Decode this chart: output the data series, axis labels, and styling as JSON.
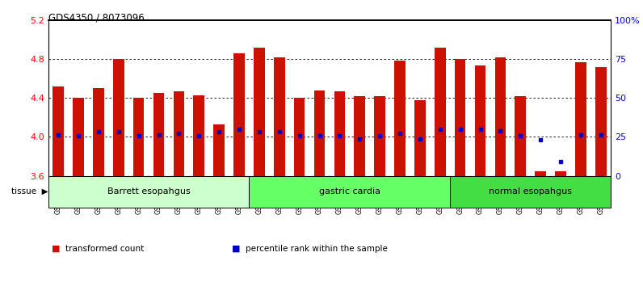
{
  "title": "GDS4350 / 8073096",
  "samples": [
    "GSM851983",
    "GSM851984",
    "GSM851985",
    "GSM851986",
    "GSM851987",
    "GSM851988",
    "GSM851989",
    "GSM851990",
    "GSM851991",
    "GSM851992",
    "GSM852001",
    "GSM852002",
    "GSM852003",
    "GSM852004",
    "GSM852005",
    "GSM852006",
    "GSM852007",
    "GSM852008",
    "GSM852009",
    "GSM852010",
    "GSM851993",
    "GSM851994",
    "GSM851995",
    "GSM851996",
    "GSM851997",
    "GSM851998",
    "GSM851999",
    "GSM852000"
  ],
  "bar_values": [
    4.52,
    4.4,
    4.5,
    4.8,
    4.4,
    4.45,
    4.47,
    4.43,
    4.13,
    4.86,
    4.92,
    4.82,
    4.4,
    4.48,
    4.47,
    4.42,
    4.42,
    4.78,
    4.38,
    4.92,
    4.8,
    4.73,
    4.82,
    4.42,
    3.65,
    3.65,
    4.77,
    4.72
  ],
  "bar_bottom": 3.6,
  "blue_dot_values": [
    4.02,
    4.01,
    4.05,
    4.05,
    4.01,
    4.02,
    4.04,
    4.01,
    4.05,
    4.08,
    4.05,
    4.05,
    4.01,
    4.01,
    4.01,
    3.98,
    4.01,
    4.04,
    3.98,
    4.08,
    4.08,
    4.08,
    4.06,
    4.01,
    3.97,
    3.75,
    4.02,
    4.02
  ],
  "ylim": [
    3.6,
    5.2
  ],
  "yticks": [
    3.6,
    4.0,
    4.4,
    4.8,
    5.2
  ],
  "right_yticks": [
    0,
    25,
    50,
    75,
    100
  ],
  "right_ytick_labels": [
    "0",
    "25",
    "50",
    "75",
    "100%"
  ],
  "groups": [
    {
      "label": "Barrett esopahgus",
      "start": 0,
      "end": 9,
      "color": "#ccffcc"
    },
    {
      "label": "gastric cardia",
      "start": 10,
      "end": 19,
      "color": "#66ff66"
    },
    {
      "label": "normal esopahgus",
      "start": 20,
      "end": 27,
      "color": "#44dd44"
    }
  ],
  "bar_color": "#cc1100",
  "dot_color": "#0000cc",
  "bar_width": 0.55,
  "legend_items": [
    {
      "label": "transformed count",
      "color": "#cc1100"
    },
    {
      "label": "percentile rank within the sample",
      "color": "#0000cc"
    }
  ],
  "grid_lines": [
    4.0,
    4.4,
    4.8
  ],
  "xtick_bg": "#d8d8d8"
}
